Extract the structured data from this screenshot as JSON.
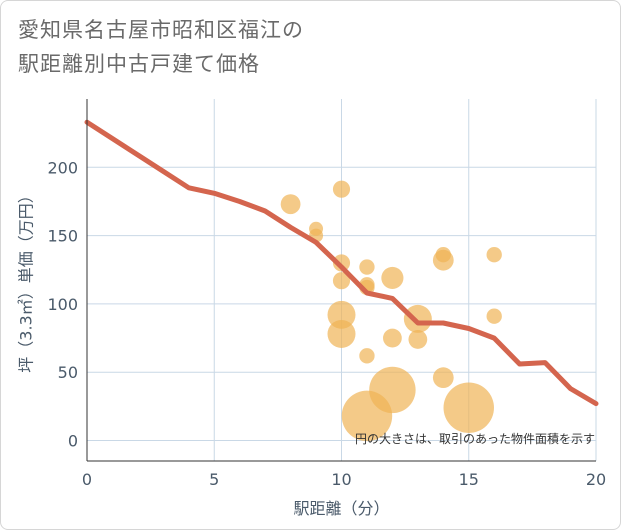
{
  "title_line1": "愛知県名古屋市昭和区福江の",
  "title_line2": "駅距離別中古戸建て価格",
  "chart_data": {
    "type": "scatter",
    "xlabel": "駅距離（分）",
    "ylabel": "坪（3.3㎡）単価（万円）",
    "xlim": [
      0,
      20
    ],
    "ylim": [
      -15,
      250
    ],
    "xticks": [
      0,
      5,
      10,
      15,
      20
    ],
    "yticks": [
      0,
      50,
      100,
      150,
      200
    ],
    "grid": true,
    "note": "円の大きさは、取引のあった物件面積を示す",
    "colors": {
      "line": "#d4654e",
      "bubble": "#f0b356",
      "grid": "#c9d8e6",
      "axis": "#333333"
    },
    "series": [
      {
        "kind": "line",
        "points": [
          [
            0,
            233
          ],
          [
            1,
            221
          ],
          [
            2,
            209
          ],
          [
            3,
            197
          ],
          [
            4,
            185
          ],
          [
            5,
            181
          ],
          [
            6,
            175
          ],
          [
            7,
            168
          ],
          [
            8,
            156
          ],
          [
            9,
            145
          ],
          [
            10,
            127
          ],
          [
            11,
            108
          ],
          [
            12,
            104
          ],
          [
            13,
            86
          ],
          [
            14,
            86
          ],
          [
            15,
            82
          ],
          [
            16,
            75
          ],
          [
            17,
            56
          ],
          [
            18,
            57
          ],
          [
            19,
            38
          ],
          [
            20,
            27
          ]
        ]
      },
      {
        "kind": "bubble",
        "points": [
          {
            "x": 8,
            "y": 173,
            "size": 2
          },
          {
            "x": 9,
            "y": 155,
            "size": 1
          },
          {
            "x": 9,
            "y": 150,
            "size": 1
          },
          {
            "x": 10,
            "y": 184,
            "size": 1.5
          },
          {
            "x": 10,
            "y": 130,
            "size": 1.5
          },
          {
            "x": 10,
            "y": 117,
            "size": 1.5
          },
          {
            "x": 10,
            "y": 92,
            "size": 4
          },
          {
            "x": 10,
            "y": 78,
            "size": 4
          },
          {
            "x": 11,
            "y": 127,
            "size": 1.2
          },
          {
            "x": 11,
            "y": 114,
            "size": 1.2
          },
          {
            "x": 11,
            "y": 112,
            "size": 1.2
          },
          {
            "x": 11,
            "y": 62,
            "size": 1.2
          },
          {
            "x": 11,
            "y": 18,
            "size": 13
          },
          {
            "x": 12,
            "y": 119,
            "size": 2.5
          },
          {
            "x": 12,
            "y": 75,
            "size": 1.8
          },
          {
            "x": 12,
            "y": 37,
            "size": 11
          },
          {
            "x": 13,
            "y": 89,
            "size": 4
          },
          {
            "x": 13,
            "y": 74,
            "size": 1.8
          },
          {
            "x": 14,
            "y": 136,
            "size": 1.2
          },
          {
            "x": 14,
            "y": 132,
            "size": 2.2
          },
          {
            "x": 14,
            "y": 46,
            "size": 2.2
          },
          {
            "x": 15,
            "y": 24,
            "size": 13
          },
          {
            "x": 16,
            "y": 136,
            "size": 1.2
          },
          {
            "x": 16,
            "y": 91,
            "size": 1.2
          }
        ]
      }
    ]
  }
}
